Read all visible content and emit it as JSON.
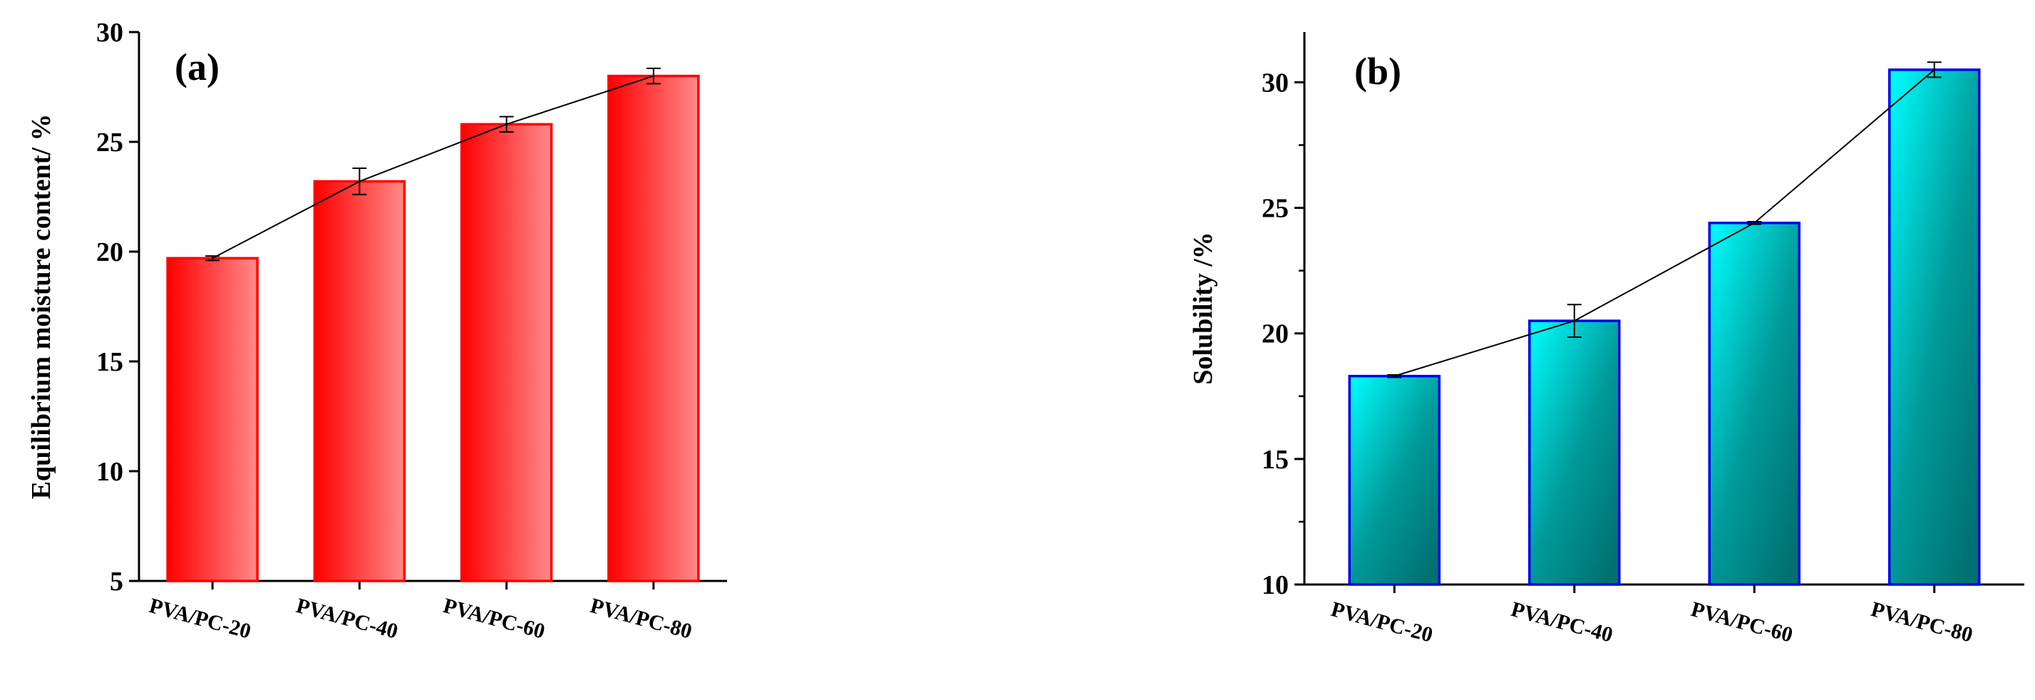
{
  "chart_data": [
    {
      "type": "bar",
      "panel_label": "(a)",
      "title": "",
      "xlabel": "",
      "ylabel": "Equilibrium moisture content/ %",
      "categories": [
        "PVA/PC-20",
        "PVA/PC-40",
        "PVA/PC-60",
        "PVA/PC-80"
      ],
      "values": [
        19.7,
        23.2,
        25.8,
        28.0
      ],
      "errors": [
        0.1,
        0.6,
        0.35,
        0.35
      ],
      "connect_line": true,
      "ylim": [
        5,
        30
      ],
      "yticks": [
        5,
        10,
        15,
        20,
        25,
        30
      ],
      "bar_fill": "#ff0000",
      "bar_fill_light": "#ff8a8a",
      "bar_stroke": "#ff0000",
      "line_color": "#000000",
      "grid": false
    },
    {
      "type": "bar",
      "panel_label": "(b)",
      "title": "",
      "xlabel": "",
      "ylabel": "Solubility /%",
      "categories": [
        "PVA/PC-20",
        "PVA/PC-40",
        "PVA/PC-60",
        "PVA/PC-80"
      ],
      "values": [
        18.3,
        20.5,
        24.4,
        30.5
      ],
      "errors": [
        0.05,
        0.65,
        0.05,
        0.3
      ],
      "connect_line": true,
      "ylim": [
        10,
        32
      ],
      "yticks": [
        10,
        15,
        20,
        25,
        30
      ],
      "bar_fill": "#00ffff",
      "bar_fill_dark": "#007a7a",
      "bar_stroke": "#0000ee",
      "line_color": "#000000",
      "grid": false
    }
  ]
}
